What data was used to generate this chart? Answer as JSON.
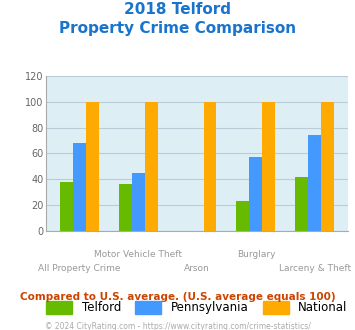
{
  "title_line1": "2018 Telford",
  "title_line2": "Property Crime Comparison",
  "title_color": "#1874cd",
  "categories": [
    "All Property Crime",
    "Motor Vehicle Theft",
    "Arson",
    "Burglary",
    "Larceny & Theft"
  ],
  "series": {
    "Telford": [
      38,
      36,
      0,
      23,
      42
    ],
    "Pennsylvania": [
      68,
      45,
      0,
      57,
      74
    ],
    "National": [
      100,
      100,
      100,
      100,
      100
    ]
  },
  "colors": {
    "Telford": "#66bb00",
    "Pennsylvania": "#4499ff",
    "National": "#ffaa00"
  },
  "ylim": [
    0,
    120
  ],
  "yticks": [
    0,
    20,
    40,
    60,
    80,
    100,
    120
  ],
  "background_color": "#ddeef5",
  "grid_color": "#bbccd8",
  "x_label_color": "#999999",
  "footnote": "Compared to U.S. average. (U.S. average equals 100)",
  "footnote_color": "#cc4400",
  "copyright": "© 2024 CityRating.com - https://www.cityrating.com/crime-statistics/",
  "copyright_color": "#aaaaaa"
}
